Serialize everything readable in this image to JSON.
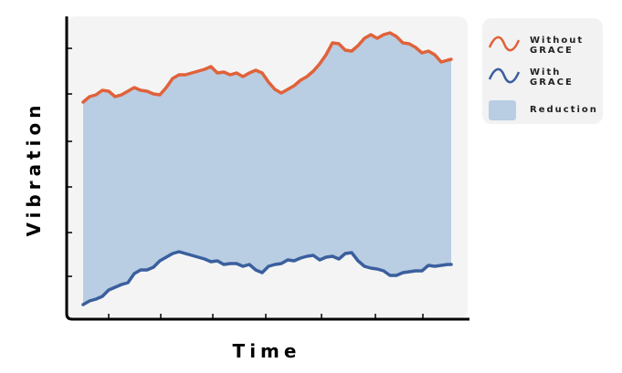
{
  "chart_data": {
    "type": "line",
    "x_label": "Time",
    "y_label": "Vibration",
    "x": [
      18,
      25,
      32,
      39,
      46,
      53,
      60,
      67,
      74,
      81,
      88,
      95,
      102,
      109,
      116,
      123,
      130,
      137,
      144,
      151,
      158,
      165,
      172,
      179,
      186,
      193,
      200,
      207,
      214,
      221,
      228,
      235,
      242,
      249,
      256,
      263,
      270,
      277,
      284,
      291,
      298,
      305,
      312,
      319,
      326,
      333,
      340,
      347,
      354,
      361,
      368,
      375,
      382,
      389,
      396,
      403,
      410,
      417,
      421
    ],
    "series": [
      {
        "name": "Without GRACE",
        "color": "#e0623a",
        "values": [
          238,
          244,
          246,
          251,
          250,
          244,
          246,
          250,
          254,
          251,
          250,
          247,
          246,
          254,
          264,
          268,
          268,
          270,
          272,
          274,
          277,
          270,
          271,
          268,
          270,
          266,
          270,
          273,
          270,
          260,
          252,
          248,
          252,
          256,
          262,
          266,
          272,
          280,
          290,
          303,
          302,
          295,
          294,
          300,
          308,
          312,
          308,
          312,
          314,
          310,
          303,
          302,
          298,
          292,
          294,
          290,
          282,
          284,
          285
        ]
      },
      {
        "name": "With GRACE",
        "color": "#3a5f9e",
        "values": [
          16,
          20,
          22,
          25,
          32,
          35,
          38,
          40,
          50,
          54,
          54,
          57,
          64,
          68,
          72,
          74,
          72,
          70,
          68,
          66,
          63,
          64,
          60,
          61,
          61,
          58,
          60,
          54,
          51,
          58,
          60,
          61,
          65,
          64,
          67,
          69,
          70,
          65,
          68,
          69,
          66,
          72,
          73,
          64,
          58,
          56,
          55,
          53,
          48,
          48,
          51,
          52,
          53,
          53,
          59,
          58,
          59,
          60,
          60
        ]
      }
    ],
    "fill_between": {
      "name": "Reduction",
      "color": "#b9cde3"
    },
    "xlim": [
      0,
      439
    ],
    "ylim": [
      0,
      332
    ],
    "xticks": [
      46,
      103,
      160,
      218,
      279,
      338,
      390
    ],
    "yticks": [
      47,
      95,
      145,
      195,
      247,
      297
    ]
  }
}
